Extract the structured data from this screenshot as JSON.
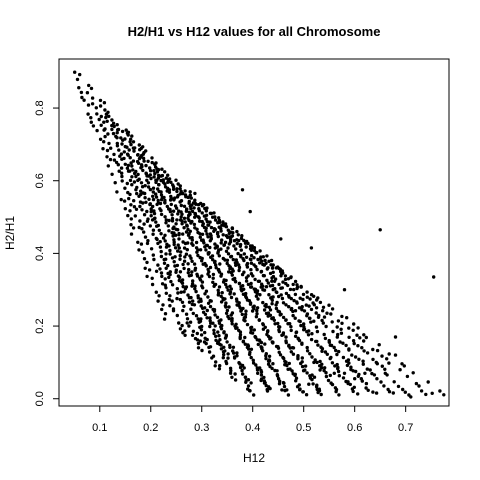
{
  "chart_data": {
    "type": "scatter",
    "title": "H2/H1 vs H12 values for all Chromosome",
    "xlabel": "H12",
    "ylabel": "H2/H1",
    "xlim": [
      0.02,
      0.785
    ],
    "ylim": [
      -0.02,
      0.935
    ],
    "x_ticks": [
      0.1,
      0.2,
      0.3,
      0.4,
      0.5,
      0.6,
      0.7
    ],
    "x_tick_labels": [
      "0.1",
      "0.2",
      "0.3",
      "0.4",
      "0.5",
      "0.6",
      "0.7"
    ],
    "y_ticks": [
      0.0,
      0.2,
      0.4,
      0.6,
      0.8
    ],
    "y_tick_labels": [
      "0.0",
      "0.2",
      "0.4",
      "0.6",
      "0.8"
    ],
    "grid": false,
    "point_color": "#000000",
    "outliers": [
      {
        "x": 0.755,
        "y": 0.335
      },
      {
        "x": 0.65,
        "y": 0.465
      },
      {
        "x": 0.752,
        "y": 0.015
      },
      {
        "x": 0.71,
        "y": 0.005
      },
      {
        "x": 0.68,
        "y": 0.17
      },
      {
        "x": 0.68,
        "y": 0.12
      },
      {
        "x": 0.66,
        "y": 0.07
      },
      {
        "x": 0.62,
        "y": 0.07
      },
      {
        "x": 0.6,
        "y": 0.055
      },
      {
        "x": 0.58,
        "y": 0.3
      },
      {
        "x": 0.58,
        "y": 0.07
      },
      {
        "x": 0.56,
        "y": 0.07
      },
      {
        "x": 0.55,
        "y": 0.16
      },
      {
        "x": 0.52,
        "y": 0.1
      },
      {
        "x": 0.515,
        "y": 0.415
      },
      {
        "x": 0.51,
        "y": 0.04
      },
      {
        "x": 0.5,
        "y": 0.19
      },
      {
        "x": 0.48,
        "y": 0.14
      },
      {
        "x": 0.47,
        "y": 0.33
      },
      {
        "x": 0.455,
        "y": 0.44
      },
      {
        "x": 0.44,
        "y": 0.28
      },
      {
        "x": 0.42,
        "y": 0.3
      },
      {
        "x": 0.395,
        "y": 0.515
      },
      {
        "x": 0.38,
        "y": 0.575
      },
      {
        "x": 0.36,
        "y": 0.47
      },
      {
        "x": 0.33,
        "y": 0.42
      }
    ],
    "clusters": [
      {
        "x0": 0.05,
        "yTop": 0.9,
        "count": 30
      },
      {
        "x0": 0.075,
        "yTop": 0.86,
        "count": 45
      },
      {
        "x0": 0.1,
        "yTop": 0.82,
        "count": 60
      },
      {
        "x0": 0.125,
        "yTop": 0.77,
        "count": 70
      },
      {
        "x0": 0.15,
        "yTop": 0.74,
        "count": 80
      },
      {
        "x0": 0.175,
        "yTop": 0.7,
        "count": 85
      },
      {
        "x0": 0.2,
        "yTop": 0.66,
        "count": 90
      },
      {
        "x0": 0.225,
        "yTop": 0.63,
        "count": 90
      },
      {
        "x0": 0.25,
        "yTop": 0.6,
        "count": 85
      },
      {
        "x0": 0.275,
        "yTop": 0.57,
        "count": 75
      },
      {
        "x0": 0.3,
        "yTop": 0.54,
        "count": 65
      },
      {
        "x0": 0.325,
        "yTop": 0.51,
        "count": 55
      },
      {
        "x0": 0.35,
        "yTop": 0.48,
        "count": 45
      },
      {
        "x0": 0.375,
        "yTop": 0.45,
        "count": 35
      },
      {
        "x0": 0.4,
        "yTop": 0.42,
        "count": 28
      },
      {
        "x0": 0.425,
        "yTop": 0.39,
        "count": 20
      },
      {
        "x0": 0.45,
        "yTop": 0.36,
        "count": 14
      }
    ]
  }
}
